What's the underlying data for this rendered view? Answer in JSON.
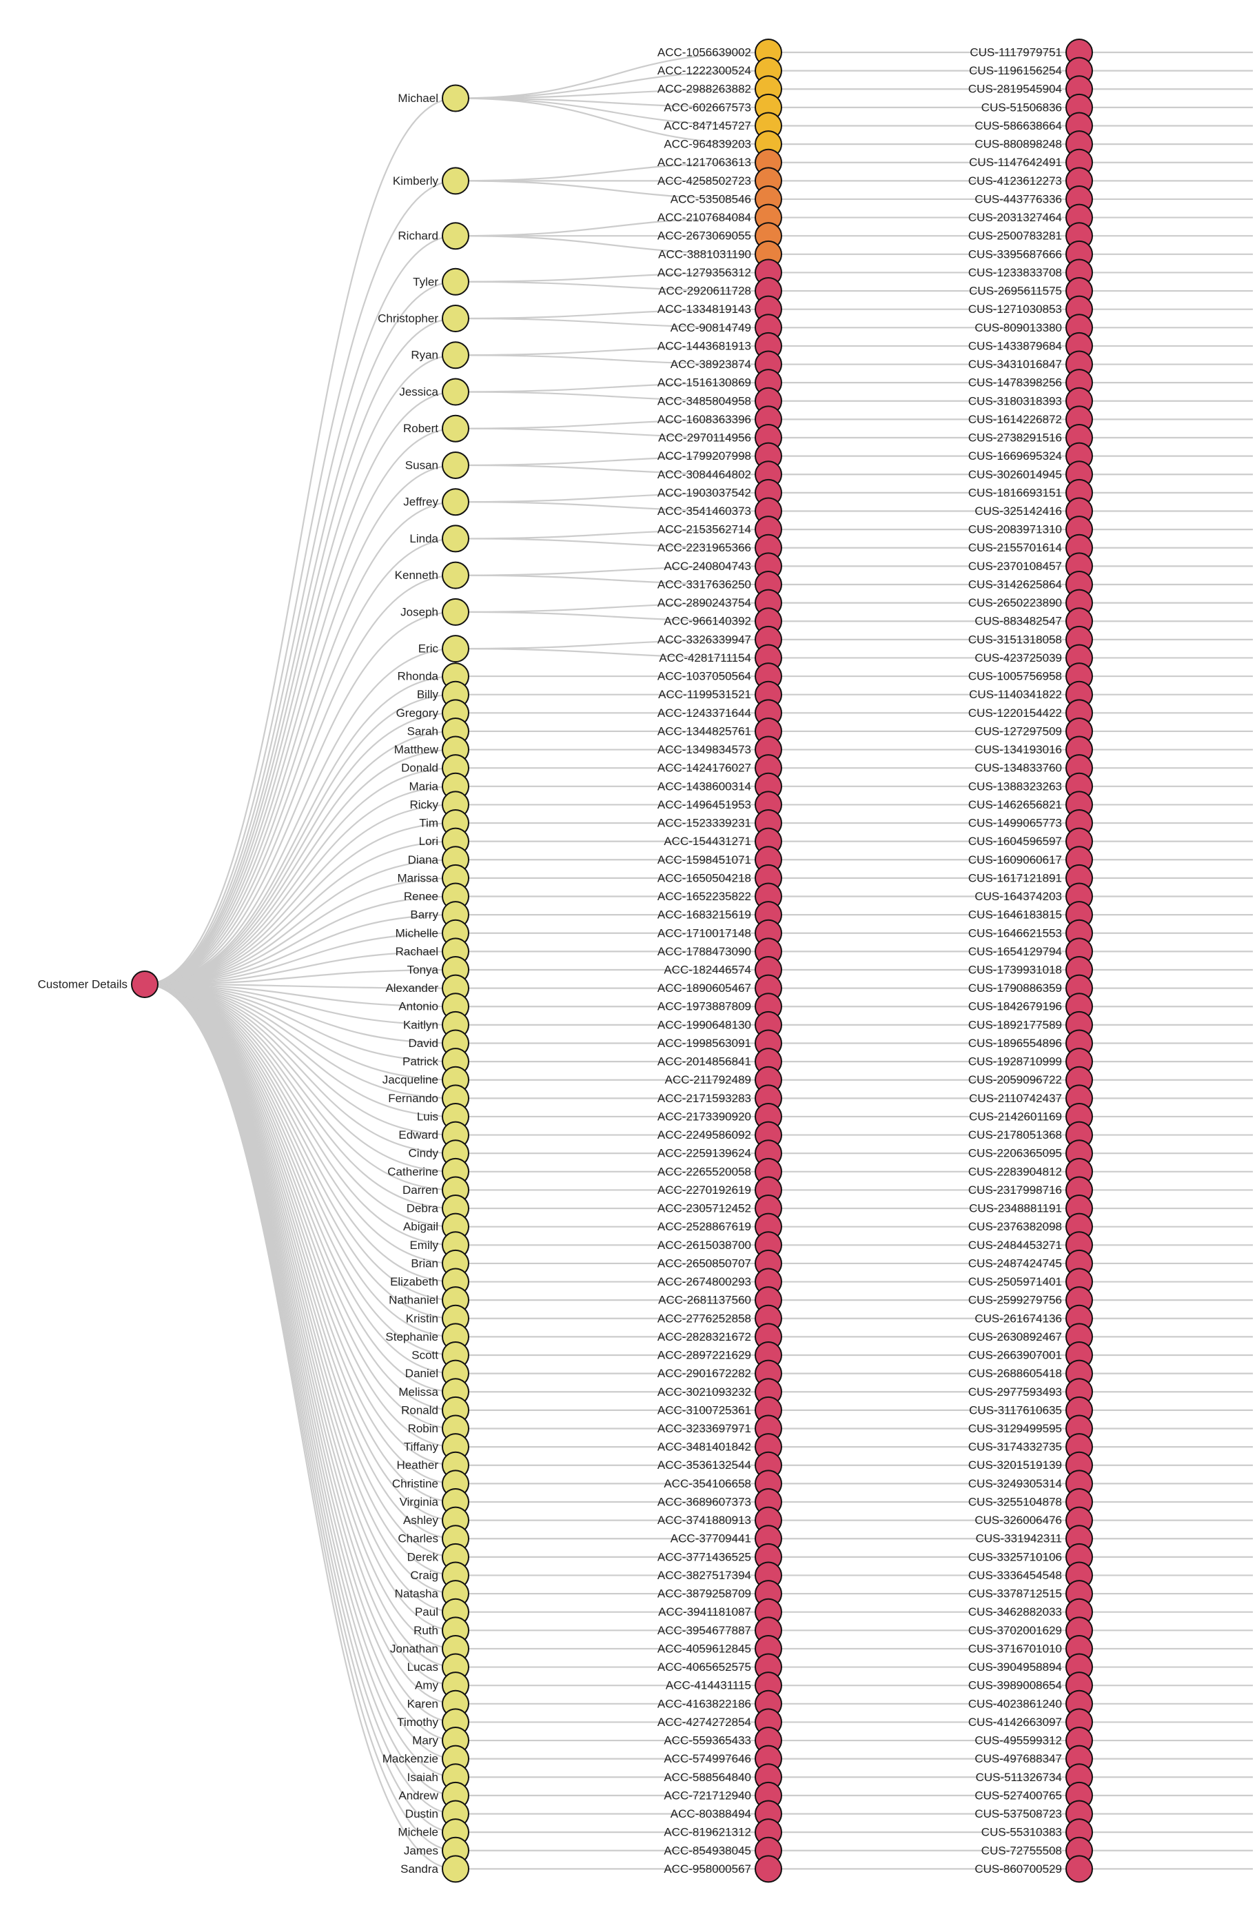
{
  "colors": {
    "link": "#cccccc",
    "node_stroke": "#111111",
    "root": "#d64467",
    "name": "#e4e07a",
    "acc_yellow": "#f0b82e",
    "acc_orange": "#e8823e",
    "acc_red": "#d64467",
    "cus": "#d64467"
  },
  "root": {
    "label": "Customer Details",
    "color": "root"
  },
  "names": [
    {
      "label": "Michael",
      "accounts": [
        0,
        1,
        2,
        3,
        4,
        5
      ]
    },
    {
      "label": "Kimberly",
      "accounts": [
        6,
        7,
        8
      ]
    },
    {
      "label": "Richard",
      "accounts": [
        9,
        10,
        11
      ]
    },
    {
      "label": "Tyler",
      "accounts": [
        12,
        13
      ]
    },
    {
      "label": "Christopher",
      "accounts": [
        14,
        15
      ]
    },
    {
      "label": "Ryan",
      "accounts": [
        16,
        17
      ]
    },
    {
      "label": "Jessica",
      "accounts": [
        18,
        19
      ]
    },
    {
      "label": "Robert",
      "accounts": [
        20,
        21
      ]
    },
    {
      "label": "Susan",
      "accounts": [
        22,
        23
      ]
    },
    {
      "label": "Jeffrey",
      "accounts": [
        24,
        25
      ]
    },
    {
      "label": "Linda",
      "accounts": [
        26,
        27
      ]
    },
    {
      "label": "Kenneth",
      "accounts": [
        28,
        29
      ]
    },
    {
      "label": "Joseph",
      "accounts": [
        30,
        31
      ]
    },
    {
      "label": "Eric",
      "accounts": [
        32,
        33
      ]
    },
    {
      "label": "Rhonda",
      "accounts": [
        34
      ]
    },
    {
      "label": "Billy",
      "accounts": [
        35
      ]
    },
    {
      "label": "Gregory",
      "accounts": [
        36
      ]
    },
    {
      "label": "Sarah",
      "accounts": [
        37
      ]
    },
    {
      "label": "Matthew",
      "accounts": [
        38
      ]
    },
    {
      "label": "Donald",
      "accounts": [
        39
      ]
    },
    {
      "label": "Maria",
      "accounts": [
        40
      ]
    },
    {
      "label": "Ricky",
      "accounts": [
        41
      ]
    },
    {
      "label": "Tim",
      "accounts": [
        42
      ]
    },
    {
      "label": "Lori",
      "accounts": [
        43
      ]
    },
    {
      "label": "Diana",
      "accounts": [
        44
      ]
    },
    {
      "label": "Marissa",
      "accounts": [
        45
      ]
    },
    {
      "label": "Renee",
      "accounts": [
        46
      ]
    },
    {
      "label": "Barry",
      "accounts": [
        47
      ]
    },
    {
      "label": "Michelle",
      "accounts": [
        48
      ]
    },
    {
      "label": "Rachael",
      "accounts": [
        49
      ]
    },
    {
      "label": "Tonya",
      "accounts": [
        50
      ]
    },
    {
      "label": "Alexander",
      "accounts": [
        51
      ]
    },
    {
      "label": "Antonio",
      "accounts": [
        52
      ]
    },
    {
      "label": "Kaitlyn",
      "accounts": [
        53
      ]
    },
    {
      "label": "David",
      "accounts": [
        54
      ]
    },
    {
      "label": "Patrick",
      "accounts": [
        55
      ]
    },
    {
      "label": "Jacqueline",
      "accounts": [
        56
      ]
    },
    {
      "label": "Fernando",
      "accounts": [
        57
      ]
    },
    {
      "label": "Luis",
      "accounts": [
        58
      ]
    },
    {
      "label": "Edward",
      "accounts": [
        59
      ]
    },
    {
      "label": "Cindy",
      "accounts": [
        60
      ]
    },
    {
      "label": "Catherine",
      "accounts": [
        61
      ]
    },
    {
      "label": "Darren",
      "accounts": [
        62
      ]
    },
    {
      "label": "Debra",
      "accounts": [
        63
      ]
    },
    {
      "label": "Abigail",
      "accounts": [
        64
      ]
    },
    {
      "label": "Emily",
      "accounts": [
        65
      ]
    },
    {
      "label": "Brian",
      "accounts": [
        66
      ]
    },
    {
      "label": "Elizabeth",
      "accounts": [
        67
      ]
    },
    {
      "label": "Nathaniel",
      "accounts": [
        68
      ]
    },
    {
      "label": "Kristin",
      "accounts": [
        69
      ]
    },
    {
      "label": "Stephanie",
      "accounts": [
        70
      ]
    },
    {
      "label": "Scott",
      "accounts": [
        71
      ]
    },
    {
      "label": "Daniel",
      "accounts": [
        72
      ]
    },
    {
      "label": "Melissa",
      "accounts": [
        73
      ]
    },
    {
      "label": "Ronald",
      "accounts": [
        74
      ]
    },
    {
      "label": "Robin",
      "accounts": [
        75
      ]
    },
    {
      "label": "Tiffany",
      "accounts": [
        76
      ]
    },
    {
      "label": "Heather",
      "accounts": [
        77
      ]
    },
    {
      "label": "Christine",
      "accounts": [
        78
      ]
    },
    {
      "label": "Virginia",
      "accounts": [
        79
      ]
    },
    {
      "label": "Ashley",
      "accounts": [
        80
      ]
    },
    {
      "label": "Charles",
      "accounts": [
        81
      ]
    },
    {
      "label": "Derek",
      "accounts": [
        82
      ]
    },
    {
      "label": "Craig",
      "accounts": [
        83
      ]
    },
    {
      "label": "Natasha",
      "accounts": [
        84
      ]
    },
    {
      "label": "Paul",
      "accounts": [
        85
      ]
    },
    {
      "label": "Ruth",
      "accounts": [
        86
      ]
    },
    {
      "label": "Jonathan",
      "accounts": [
        87
      ]
    },
    {
      "label": "Lucas",
      "accounts": [
        88
      ]
    },
    {
      "label": "Amy",
      "accounts": [
        89
      ]
    },
    {
      "label": "Karen",
      "accounts": [
        90
      ]
    },
    {
      "label": "Timothy",
      "accounts": [
        91
      ]
    },
    {
      "label": "Mary",
      "accounts": [
        92
      ]
    },
    {
      "label": "Mackenzie",
      "accounts": [
        93
      ]
    },
    {
      "label": "Isaiah",
      "accounts": [
        94
      ]
    },
    {
      "label": "Andrew",
      "accounts": [
        95
      ]
    },
    {
      "label": "Dustin",
      "accounts": [
        96
      ]
    },
    {
      "label": "Michele",
      "accounts": [
        97
      ]
    },
    {
      "label": "James",
      "accounts": [
        98
      ]
    },
    {
      "label": "Sandra",
      "accounts": [
        99
      ]
    }
  ],
  "accounts": [
    {
      "label": "ACC-1056639002",
      "color": "acc_yellow"
    },
    {
      "label": "ACC-1222300524",
      "color": "acc_yellow"
    },
    {
      "label": "ACC-2988263882",
      "color": "acc_yellow"
    },
    {
      "label": "ACC-602667573",
      "color": "acc_yellow"
    },
    {
      "label": "ACC-847145727",
      "color": "acc_yellow"
    },
    {
      "label": "ACC-964839203",
      "color": "acc_yellow"
    },
    {
      "label": "ACC-1217063613",
      "color": "acc_orange"
    },
    {
      "label": "ACC-4258502723",
      "color": "acc_orange"
    },
    {
      "label": "ACC-53508546",
      "color": "acc_orange"
    },
    {
      "label": "ACC-2107684084",
      "color": "acc_orange"
    },
    {
      "label": "ACC-2673069055",
      "color": "acc_orange"
    },
    {
      "label": "ACC-3881031190",
      "color": "acc_orange"
    },
    {
      "label": "ACC-1279356312",
      "color": "acc_red"
    },
    {
      "label": "ACC-2920611728",
      "color": "acc_red"
    },
    {
      "label": "ACC-1334819143",
      "color": "acc_red"
    },
    {
      "label": "ACC-90814749",
      "color": "acc_red"
    },
    {
      "label": "ACC-1443681913",
      "color": "acc_red"
    },
    {
      "label": "ACC-38923874",
      "color": "acc_red"
    },
    {
      "label": "ACC-1516130869",
      "color": "acc_red"
    },
    {
      "label": "ACC-3485804958",
      "color": "acc_red"
    },
    {
      "label": "ACC-1608363396",
      "color": "acc_red"
    },
    {
      "label": "ACC-2970114956",
      "color": "acc_red"
    },
    {
      "label": "ACC-1799207998",
      "color": "acc_red"
    },
    {
      "label": "ACC-3084464802",
      "color": "acc_red"
    },
    {
      "label": "ACC-1903037542",
      "color": "acc_red"
    },
    {
      "label": "ACC-3541460373",
      "color": "acc_red"
    },
    {
      "label": "ACC-2153562714",
      "color": "acc_red"
    },
    {
      "label": "ACC-2231965366",
      "color": "acc_red"
    },
    {
      "label": "ACC-240804743",
      "color": "acc_red"
    },
    {
      "label": "ACC-3317636250",
      "color": "acc_red"
    },
    {
      "label": "ACC-2890243754",
      "color": "acc_red"
    },
    {
      "label": "ACC-966140392",
      "color": "acc_red"
    },
    {
      "label": "ACC-3326339947",
      "color": "acc_red"
    },
    {
      "label": "ACC-4281711154",
      "color": "acc_red"
    },
    {
      "label": "ACC-1037050564",
      "color": "acc_red"
    },
    {
      "label": "ACC-1199531521",
      "color": "acc_red"
    },
    {
      "label": "ACC-1243371644",
      "color": "acc_red"
    },
    {
      "label": "ACC-1344825761",
      "color": "acc_red"
    },
    {
      "label": "ACC-1349834573",
      "color": "acc_red"
    },
    {
      "label": "ACC-1424176027",
      "color": "acc_red"
    },
    {
      "label": "ACC-1438600314",
      "color": "acc_red"
    },
    {
      "label": "ACC-1496451953",
      "color": "acc_red"
    },
    {
      "label": "ACC-1523339231",
      "color": "acc_red"
    },
    {
      "label": "ACC-154431271",
      "color": "acc_red"
    },
    {
      "label": "ACC-1598451071",
      "color": "acc_red"
    },
    {
      "label": "ACC-1650504218",
      "color": "acc_red"
    },
    {
      "label": "ACC-1652235822",
      "color": "acc_red"
    },
    {
      "label": "ACC-1683215619",
      "color": "acc_red"
    },
    {
      "label": "ACC-1710017148",
      "color": "acc_red"
    },
    {
      "label": "ACC-1788473090",
      "color": "acc_red"
    },
    {
      "label": "ACC-182446574",
      "color": "acc_red"
    },
    {
      "label": "ACC-1890605467",
      "color": "acc_red"
    },
    {
      "label": "ACC-1973887809",
      "color": "acc_red"
    },
    {
      "label": "ACC-1990648130",
      "color": "acc_red"
    },
    {
      "label": "ACC-1998563091",
      "color": "acc_red"
    },
    {
      "label": "ACC-2014856841",
      "color": "acc_red"
    },
    {
      "label": "ACC-211792489",
      "color": "acc_red"
    },
    {
      "label": "ACC-2171593283",
      "color": "acc_red"
    },
    {
      "label": "ACC-2173390920",
      "color": "acc_red"
    },
    {
      "label": "ACC-2249586092",
      "color": "acc_red"
    },
    {
      "label": "ACC-2259139624",
      "color": "acc_red"
    },
    {
      "label": "ACC-2265520058",
      "color": "acc_red"
    },
    {
      "label": "ACC-2270192619",
      "color": "acc_red"
    },
    {
      "label": "ACC-2305712452",
      "color": "acc_red"
    },
    {
      "label": "ACC-2528867619",
      "color": "acc_red"
    },
    {
      "label": "ACC-2615038700",
      "color": "acc_red"
    },
    {
      "label": "ACC-2650850707",
      "color": "acc_red"
    },
    {
      "label": "ACC-2674800293",
      "color": "acc_red"
    },
    {
      "label": "ACC-2681137560",
      "color": "acc_red"
    },
    {
      "label": "ACC-2776252858",
      "color": "acc_red"
    },
    {
      "label": "ACC-2828321672",
      "color": "acc_red"
    },
    {
      "label": "ACC-2897221629",
      "color": "acc_red"
    },
    {
      "label": "ACC-2901672282",
      "color": "acc_red"
    },
    {
      "label": "ACC-3021093232",
      "color": "acc_red"
    },
    {
      "label": "ACC-3100725361",
      "color": "acc_red"
    },
    {
      "label": "ACC-3233697971",
      "color": "acc_red"
    },
    {
      "label": "ACC-3481401842",
      "color": "acc_red"
    },
    {
      "label": "ACC-3536132544",
      "color": "acc_red"
    },
    {
      "label": "ACC-354106658",
      "color": "acc_red"
    },
    {
      "label": "ACC-3689607373",
      "color": "acc_red"
    },
    {
      "label": "ACC-3741880913",
      "color": "acc_red"
    },
    {
      "label": "ACC-37709441",
      "color": "acc_red"
    },
    {
      "label": "ACC-3771436525",
      "color": "acc_red"
    },
    {
      "label": "ACC-3827517394",
      "color": "acc_red"
    },
    {
      "label": "ACC-3879258709",
      "color": "acc_red"
    },
    {
      "label": "ACC-3941181087",
      "color": "acc_red"
    },
    {
      "label": "ACC-3954677887",
      "color": "acc_red"
    },
    {
      "label": "ACC-4059612845",
      "color": "acc_red"
    },
    {
      "label": "ACC-4065652575",
      "color": "acc_red"
    },
    {
      "label": "ACC-414431115",
      "color": "acc_red"
    },
    {
      "label": "ACC-4163822186",
      "color": "acc_red"
    },
    {
      "label": "ACC-4274272854",
      "color": "acc_red"
    },
    {
      "label": "ACC-559365433",
      "color": "acc_red"
    },
    {
      "label": "ACC-574997646",
      "color": "acc_red"
    },
    {
      "label": "ACC-588564840",
      "color": "acc_red"
    },
    {
      "label": "ACC-721712940",
      "color": "acc_red"
    },
    {
      "label": "ACC-80388494",
      "color": "acc_red"
    },
    {
      "label": "ACC-819621312",
      "color": "acc_red"
    },
    {
      "label": "ACC-854938045",
      "color": "acc_red"
    },
    {
      "label": "ACC-958000567",
      "color": "acc_red"
    }
  ],
  "customers": [
    "CUS-1117979751",
    "CUS-1196156254",
    "CUS-2819545904",
    "CUS-51506836",
    "CUS-586638664",
    "CUS-880898248",
    "CUS-1147642491",
    "CUS-4123612273",
    "CUS-443776336",
    "CUS-2031327464",
    "CUS-2500783281",
    "CUS-3395687666",
    "CUS-1233833708",
    "CUS-2695611575",
    "CUS-1271030853",
    "CUS-809013380",
    "CUS-1433879684",
    "CUS-3431016847",
    "CUS-1478398256",
    "CUS-3180318393",
    "CUS-1614226872",
    "CUS-2738291516",
    "CUS-1669695324",
    "CUS-3026014945",
    "CUS-1816693151",
    "CUS-325142416",
    "CUS-2083971310",
    "CUS-2155701614",
    "CUS-2370108457",
    "CUS-3142625864",
    "CUS-2650223890",
    "CUS-883482547",
    "CUS-3151318058",
    "CUS-423725039",
    "CUS-1005756958",
    "CUS-1140341822",
    "CUS-1220154422",
    "CUS-127297509",
    "CUS-134193016",
    "CUS-134833760",
    "CUS-1388323263",
    "CUS-1462656821",
    "CUS-1499065773",
    "CUS-1604596597",
    "CUS-1609060617",
    "CUS-1617121891",
    "CUS-164374203",
    "CUS-1646183815",
    "CUS-1646621553",
    "CUS-1654129794",
    "CUS-1739931018",
    "CUS-1790886359",
    "CUS-1842679196",
    "CUS-1892177589",
    "CUS-1896554896",
    "CUS-1928710999",
    "CUS-2059096722",
    "CUS-2110742437",
    "CUS-2142601169",
    "CUS-2178051368",
    "CUS-2206365095",
    "CUS-2283904812",
    "CUS-2317998716",
    "CUS-2348881191",
    "CUS-2376382098",
    "CUS-2484453271",
    "CUS-2487424745",
    "CUS-2505971401",
    "CUS-2599279756",
    "CUS-261674136",
    "CUS-2630892467",
    "CUS-2663907001",
    "CUS-2688605418",
    "CUS-2977593493",
    "CUS-3117610635",
    "CUS-3129499595",
    "CUS-3174332735",
    "CUS-3201519139",
    "CUS-3249305314",
    "CUS-3255104878",
    "CUS-326006476",
    "CUS-331942311",
    "CUS-3325710106",
    "CUS-3336454548",
    "CUS-3378712515",
    "CUS-3462882033",
    "CUS-3702001629",
    "CUS-3716701010",
    "CUS-3904958894",
    "CUS-3989008654",
    "CUS-4023861240",
    "CUS-4142663097",
    "CUS-495599312",
    "CUS-497688347",
    "CUS-511326734",
    "CUS-527400765",
    "CUS-537508723",
    "CUS-55310383",
    "CUS-72755508",
    "CUS-860700529"
  ]
}
